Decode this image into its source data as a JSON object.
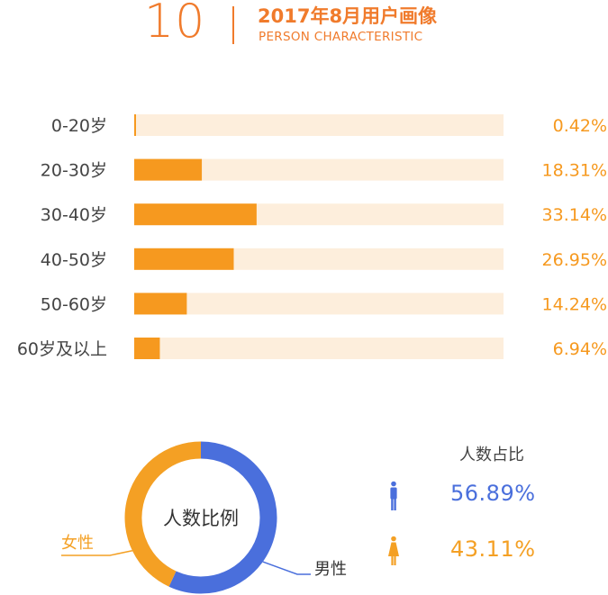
{
  "header": {
    "number": "10",
    "title": "2017年8月用户画像",
    "subtitle": "PERSON CHARACTERISTIC"
  },
  "colors": {
    "accent": "#f07b2c",
    "bar_fill": "#f6991f",
    "bar_track": "#fdeedc",
    "label_text": "#444444",
    "male": "#4a6fdc",
    "female": "#f4a024"
  },
  "chart_data": [
    {
      "type": "bar",
      "orientation": "horizontal",
      "categories": [
        "0-20岁",
        "20-30岁",
        "30-40岁",
        "40-50岁",
        "50-60岁",
        "60岁及以上"
      ],
      "values": [
        0.42,
        18.31,
        33.14,
        26.95,
        14.24,
        6.94
      ],
      "value_labels": [
        "0.42%",
        "18.31%",
        "33.14%",
        "26.95%",
        "14.24%",
        "6.94%"
      ],
      "xlim": [
        0,
        100
      ],
      "grid": false,
      "legend": "none"
    },
    {
      "type": "pie",
      "style": "donut",
      "center_label": "人数比例",
      "categories": [
        "男性",
        "女性"
      ],
      "values": [
        56.89,
        43.11
      ],
      "legend_title": "人数占比",
      "value_labels": [
        "56.89%",
        "43.11%"
      ],
      "icons": [
        "male-person-icon",
        "female-person-icon"
      ]
    }
  ]
}
